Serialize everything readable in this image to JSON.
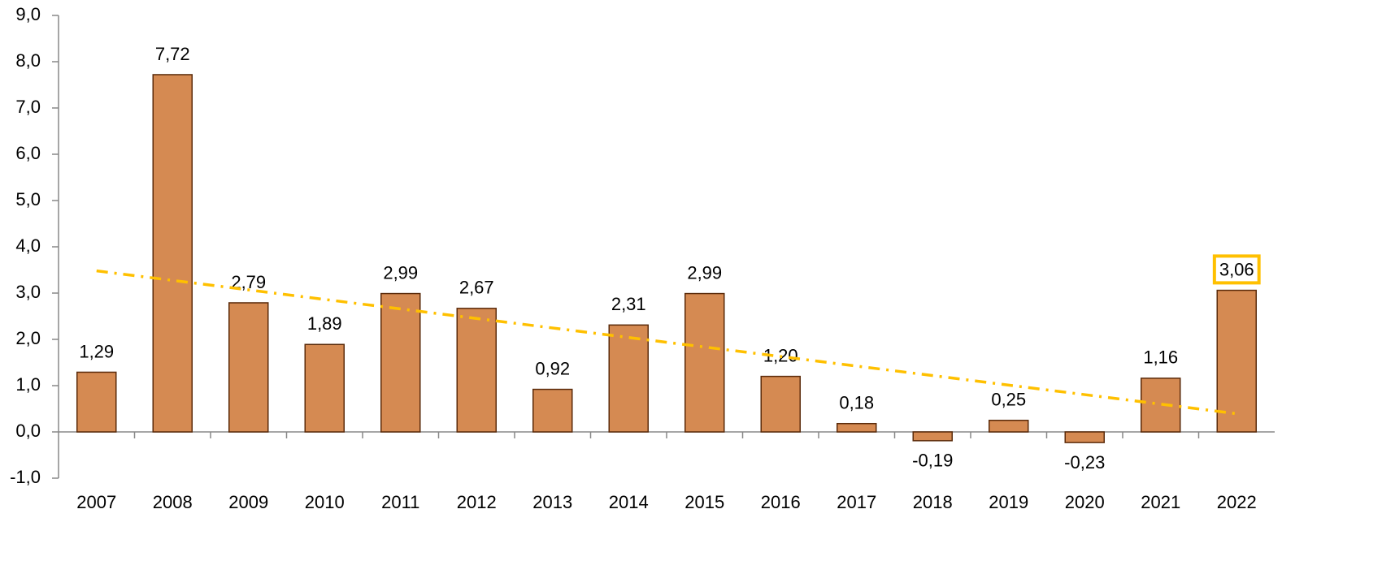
{
  "chart_data": {
    "type": "bar",
    "categories": [
      "2007",
      "2008",
      "2009",
      "2010",
      "2011",
      "2012",
      "2013",
      "2014",
      "2015",
      "2016",
      "2017",
      "2018",
      "2019",
      "2020",
      "2021",
      "2022"
    ],
    "values": [
      1.29,
      7.72,
      2.79,
      1.89,
      2.99,
      2.67,
      0.92,
      2.31,
      2.99,
      1.2,
      0.18,
      -0.19,
      0.25,
      -0.23,
      1.16,
      3.06
    ],
    "value_labels": [
      "1,29",
      "7,72",
      "2,79",
      "1,89",
      "2,99",
      "2,67",
      "0,92",
      "2,31",
      "2,99",
      "1,20",
      "0,18",
      "-0,19",
      "0,25",
      "-0,23",
      "1,16",
      "3,06"
    ],
    "color": "#d58a52",
    "edge_color": "#5a2a0a",
    "ylim": [
      -1,
      9
    ],
    "yticks": [
      {
        "value": -1,
        "label": "-1,0"
      },
      {
        "value": 0,
        "label": "0,0"
      },
      {
        "value": 1,
        "label": "1,0"
      },
      {
        "value": 2,
        "label": "2,0"
      },
      {
        "value": 3,
        "label": "3,0"
      },
      {
        "value": 4,
        "label": "4,0"
      },
      {
        "value": 5,
        "label": "5,0"
      },
      {
        "value": 6,
        "label": "6,0"
      },
      {
        "value": 7,
        "label": "7,0"
      },
      {
        "value": 8,
        "label": "8,0"
      },
      {
        "value": 9,
        "label": "9,0"
      }
    ],
    "grid": false,
    "trendline": "linear",
    "trendline_color": "#ffc000",
    "highlight_category": "2022",
    "highlight_color": "#ffc000"
  }
}
